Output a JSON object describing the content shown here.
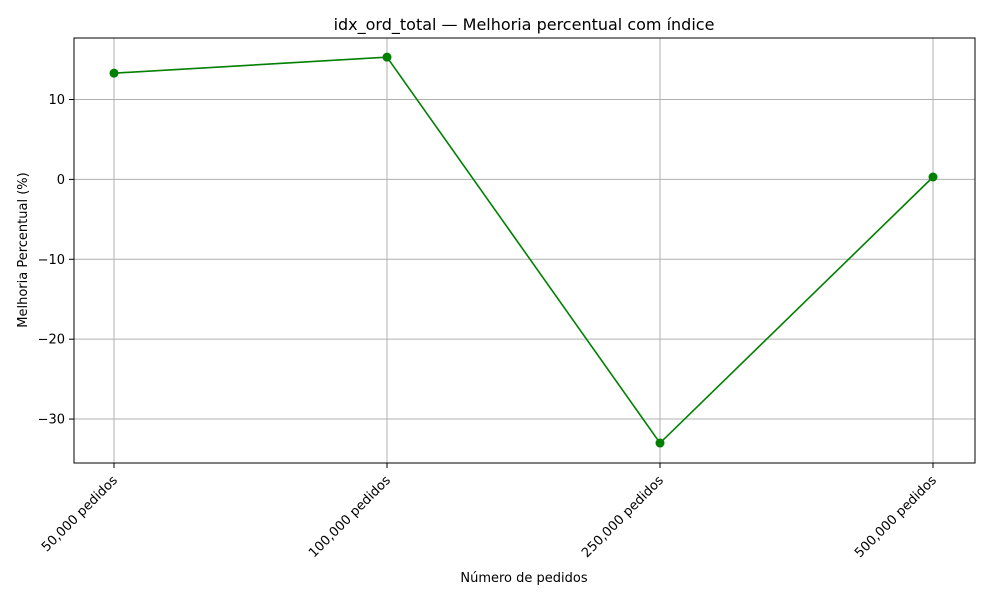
{
  "chart_data": {
    "type": "line",
    "title": "idx_ord_total — Melhoria percentual com índice",
    "xlabel": "Número de pedidos",
    "ylabel": "Melhoria Percentual (%)",
    "categories": [
      "50,000 pedidos",
      "100,000 pedidos",
      "250,000 pedidos",
      "500,000 pedidos"
    ],
    "series": [
      {
        "values": [
          13.3,
          15.3,
          -33.0,
          0.3
        ],
        "color": "#008000",
        "marker": "circle"
      }
    ],
    "ylim": [
      -35.5,
      17.7
    ],
    "yticks": [
      10,
      0,
      -10,
      -20,
      -30
    ],
    "ytick_labels": [
      "10",
      "0",
      "−10",
      "−20",
      "−30"
    ],
    "grid": true,
    "legend": false
  }
}
